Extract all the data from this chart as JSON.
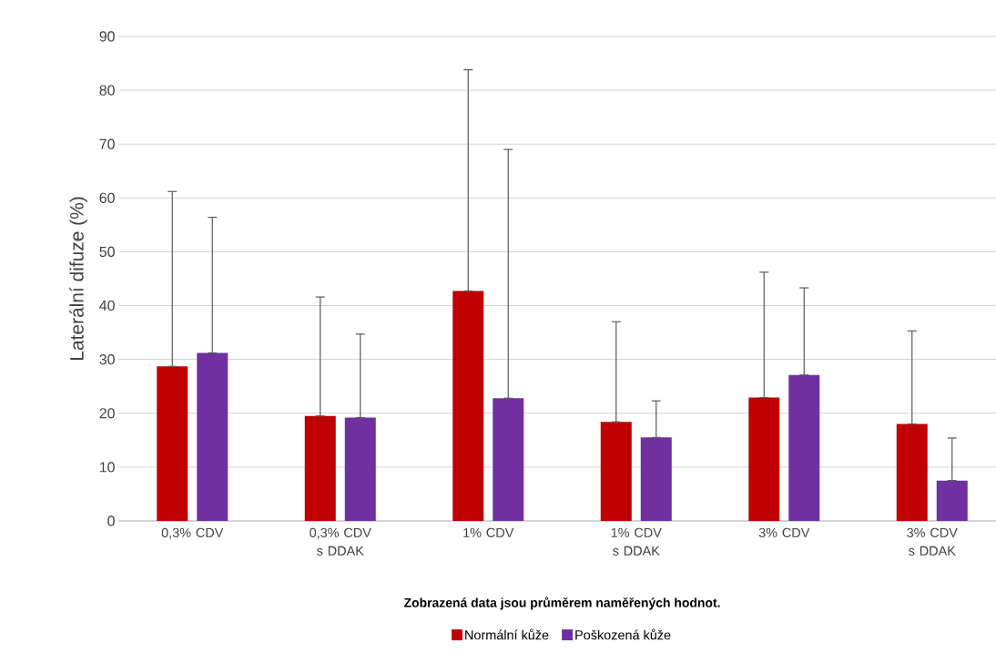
{
  "chart_data": {
    "type": "bar",
    "categories": [
      "0,3% CDV",
      "0,3% CDV s DDAK",
      "1% CDV",
      "1% CDV s DDAK",
      "3% CDV",
      "3% CDV s DDAK"
    ],
    "series": [
      {
        "name": "Normální kůže",
        "color": "#c00000",
        "values": [
          28.7,
          19.5,
          42.7,
          18.4,
          22.9,
          18.0
        ],
        "errors": [
          [
            28.7,
            61.2
          ],
          [
            19.5,
            41.6
          ],
          [
            42.7,
            83.8
          ],
          [
            18.4,
            37.0
          ],
          [
            22.9,
            46.2
          ],
          [
            18.0,
            35.3
          ]
        ]
      },
      {
        "name": "Poškozená kůže",
        "color": "#7030a0",
        "values": [
          31.2,
          19.2,
          22.8,
          15.5,
          27.1,
          7.5
        ],
        "errors": [
          [
            31.2,
            56.4
          ],
          [
            19.2,
            34.7
          ],
          [
            22.8,
            69.0
          ],
          [
            15.5,
            22.3
          ],
          [
            27.1,
            43.3
          ],
          [
            7.5,
            15.4
          ]
        ]
      }
    ],
    "ylabel": "Laterální difuze (%)",
    "annotations": [
      "**Zobrazená data jsou průměrem naměřených hodnot.**"
    ],
    "ylim": [
      0,
      90
    ],
    "yticks": [
      0,
      10,
      20,
      30,
      40,
      50,
      60,
      70,
      80,
      90
    ],
    "grid": "y",
    "legend": "bottom"
  }
}
